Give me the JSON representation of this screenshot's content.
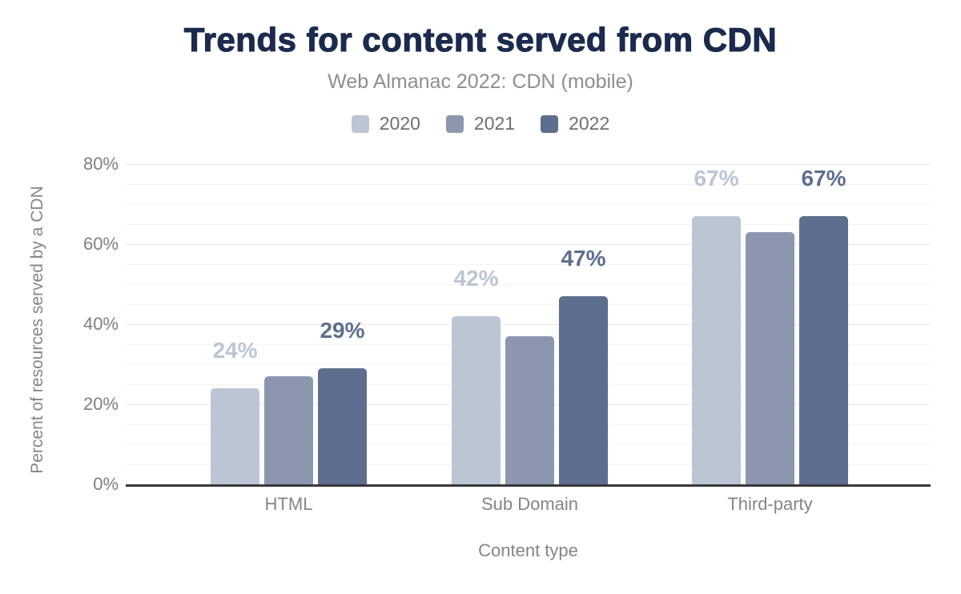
{
  "chart_data": {
    "type": "bar",
    "title": "Trends for content served from CDN",
    "subtitle": "Web Almanac 2022: CDN (mobile)",
    "xlabel": "Content type",
    "ylabel": "Percent of resources served by a CDN",
    "categories": [
      "HTML",
      "Sub Domain",
      "Third-party"
    ],
    "series": [
      {
        "name": "2020",
        "color": "#bcc5d4",
        "values": [
          24,
          42,
          67
        ],
        "data_labels": [
          "24%",
          "42%",
          "67%"
        ]
      },
      {
        "name": "2021",
        "color": "#8c97af",
        "values": [
          27,
          37,
          63
        ],
        "data_labels": [
          "",
          "",
          ""
        ]
      },
      {
        "name": "2022",
        "color": "#5e6e8e",
        "values": [
          29,
          47,
          67
        ],
        "data_labels": [
          "29%",
          "47%",
          "67%"
        ]
      }
    ],
    "ylim": [
      0,
      80
    ],
    "yticks": [
      {
        "value": 0,
        "label": "0%"
      },
      {
        "value": 20,
        "label": "20%"
      },
      {
        "value": 40,
        "label": "40%"
      },
      {
        "value": 60,
        "label": "60%"
      },
      {
        "value": 80,
        "label": "80%"
      }
    ],
    "grid": {
      "show": true,
      "minor_step": 5,
      "major_step": 20
    },
    "legend_position": "top"
  },
  "colors": {
    "title": "#1b2b4d",
    "subtitle": "#8e8e8e",
    "legend_text": "#6f6f6f",
    "axis_text": "#7d7e82",
    "axis_line": "#37383c",
    "grid_major": "#e9e9e9",
    "grid_minor": "#f4f4f4",
    "background": "#ffffff"
  }
}
